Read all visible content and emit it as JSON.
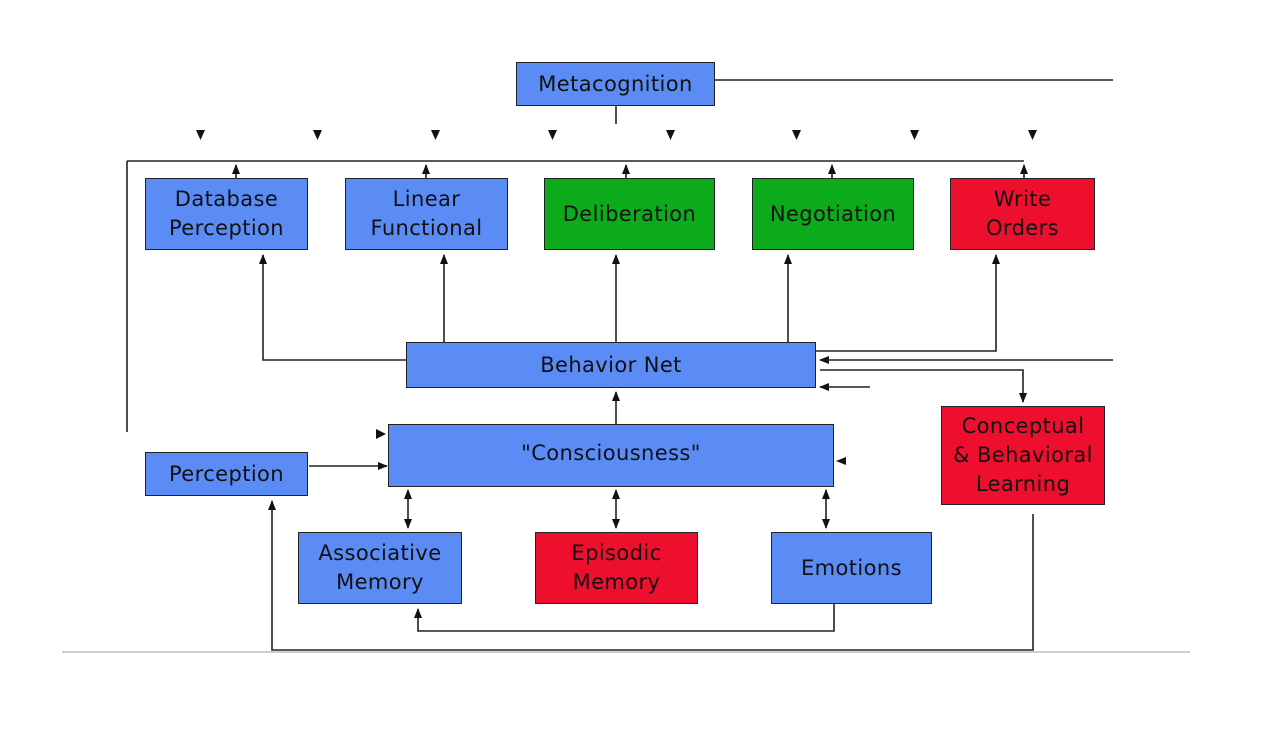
{
  "colors": {
    "blue": "#5b8cf5",
    "green": "#0bab1b",
    "red": "#ee0e2e",
    "line": "#222222"
  },
  "nodes": {
    "metacognition": "Metacognition",
    "database_perception": "Database\nPerception",
    "linear_functional": "Linear\nFunctional",
    "deliberation": "Deliberation",
    "negotiation": "Negotiation",
    "write_orders": "Write\nOrders",
    "behavior_net": "Behavior Net",
    "consciousness": "\"Consciousness\"",
    "perception": "Perception",
    "conceptual_learning": "Conceptual\n& Behavioral\nLearning",
    "associative_memory": "Associative\nMemory",
    "episodic_memory": "Episodic\nMemory",
    "emotions": "Emotions"
  }
}
